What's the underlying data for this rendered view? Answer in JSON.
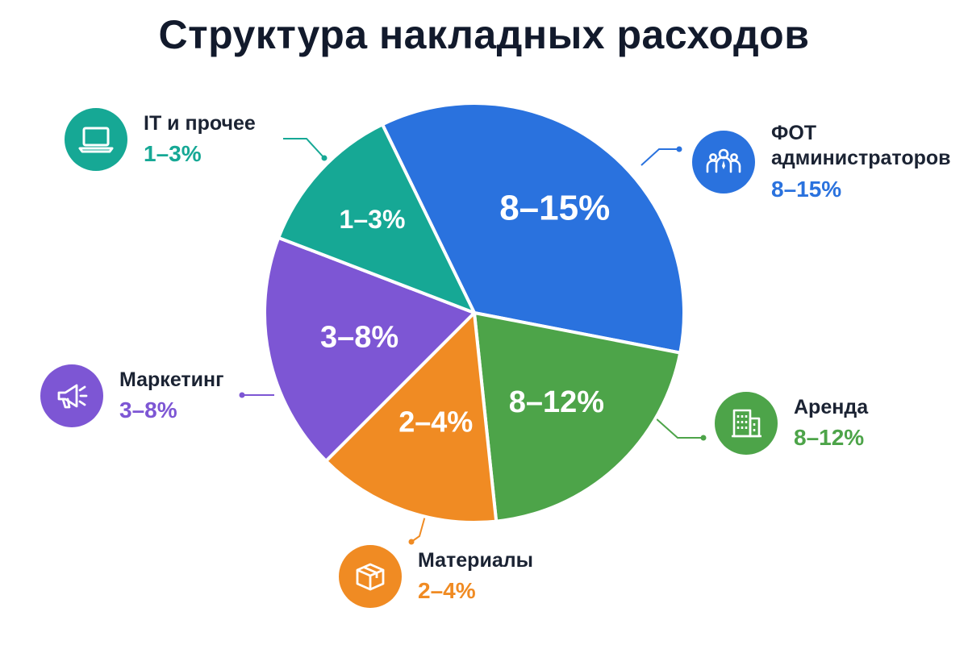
{
  "chart_data": {
    "type": "pie",
    "title": "Структура накладных расходов",
    "slices": [
      {
        "key": "fot",
        "category": "ФОТ администраторов",
        "label": "8–15%",
        "value_min": 8,
        "value_max": 15,
        "color": "#2a72de"
      },
      {
        "key": "rent",
        "category": "Аренда",
        "label": "8–12%",
        "value_min": 8,
        "value_max": 12,
        "color": "#4da449"
      },
      {
        "key": "materials",
        "category": "Материалы",
        "label": "2–4%",
        "value_min": 2,
        "value_max": 4,
        "color": "#f08b23"
      },
      {
        "key": "marketing",
        "category": "Маркетинг",
        "label": "3–8%",
        "value_min": 3,
        "value_max": 8,
        "color": "#7d56d4"
      },
      {
        "key": "it",
        "category": "IT и прочее",
        "label": "1–3%",
        "value_min": 1,
        "value_max": 3,
        "color": "#16a895"
      }
    ]
  },
  "callouts": {
    "fot": {
      "title": "ФОТ администраторов",
      "value": "8–15%",
      "icon": "team-icon",
      "color": "#2a72de"
    },
    "rent": {
      "title": "Аренда",
      "value": "8–12%",
      "icon": "building-icon",
      "color": "#4da449"
    },
    "materials": {
      "title": "Материалы",
      "value": "2–4%",
      "icon": "box-icon",
      "color": "#f08b23"
    },
    "marketing": {
      "title": "Маркетинг",
      "value": "3–8%",
      "icon": "megaphone-icon",
      "color": "#7d56d4"
    },
    "it": {
      "title": "IT и прочее",
      "value": "1–3%",
      "icon": "laptop-icon",
      "color": "#16a895"
    }
  }
}
